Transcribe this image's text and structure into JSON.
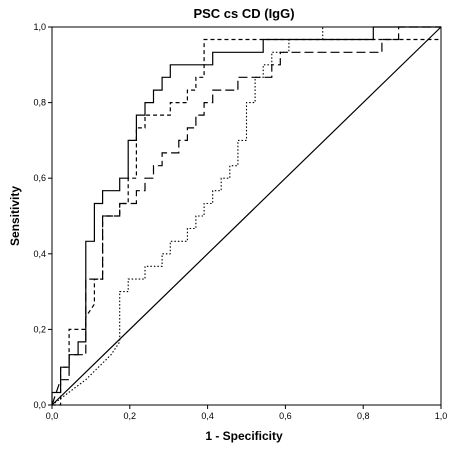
{
  "chart_data": {
    "type": "line",
    "title": "PSC cs CD (IgG)",
    "xlabel": "1 - Specificity",
    "ylabel": "Sensitivity",
    "xlim": [
      0,
      1
    ],
    "ylim": [
      0,
      1
    ],
    "x_ticks": [
      "0,0",
      "0,2",
      "0,4",
      "0,6",
      "0,8",
      "1,0"
    ],
    "y_ticks": [
      "0,0",
      "0,2",
      "0,4",
      "0,6",
      "0,8",
      "1,0"
    ],
    "grid": false,
    "legend": "none",
    "series": [
      {
        "style": "solid",
        "color": "#000000",
        "points": [
          [
            0,
            0
          ],
          [
            0,
            0.033
          ],
          [
            0.022,
            0.033
          ],
          [
            0.022,
            0.1
          ],
          [
            0.044,
            0.1
          ],
          [
            0.044,
            0.133
          ],
          [
            0.067,
            0.133
          ],
          [
            0.067,
            0.167
          ],
          [
            0.087,
            0.167
          ],
          [
            0.087,
            0.333
          ],
          [
            0.087,
            0.433
          ],
          [
            0.109,
            0.433
          ],
          [
            0.109,
            0.533
          ],
          [
            0.13,
            0.533
          ],
          [
            0.13,
            0.567
          ],
          [
            0.174,
            0.567
          ],
          [
            0.174,
            0.6
          ],
          [
            0.196,
            0.6
          ],
          [
            0.196,
            0.7
          ],
          [
            0.217,
            0.7
          ],
          [
            0.217,
            0.767
          ],
          [
            0.239,
            0.767
          ],
          [
            0.239,
            0.8
          ],
          [
            0.261,
            0.8
          ],
          [
            0.261,
            0.833
          ],
          [
            0.283,
            0.833
          ],
          [
            0.283,
            0.867
          ],
          [
            0.304,
            0.867
          ],
          [
            0.304,
            0.9
          ],
          [
            0.413,
            0.9
          ],
          [
            0.413,
            0.933
          ],
          [
            0.543,
            0.933
          ],
          [
            0.543,
            0.967
          ],
          [
            0.826,
            0.967
          ],
          [
            0.826,
            1.0
          ],
          [
            1.0,
            1.0
          ]
        ]
      },
      {
        "style": "short-dash",
        "color": "#000000",
        "points": [
          [
            0,
            0
          ],
          [
            0.022,
            0
          ],
          [
            0.022,
            0.1
          ],
          [
            0.044,
            0.1
          ],
          [
            0.044,
            0.2
          ],
          [
            0.087,
            0.2
          ],
          [
            0.087,
            0.233
          ],
          [
            0.109,
            0.267
          ],
          [
            0.109,
            0.333
          ],
          [
            0.13,
            0.333
          ],
          [
            0.13,
            0.5
          ],
          [
            0.174,
            0.5
          ],
          [
            0.174,
            0.533
          ],
          [
            0.196,
            0.533
          ],
          [
            0.196,
            0.6
          ],
          [
            0.217,
            0.6
          ],
          [
            0.217,
            0.733
          ],
          [
            0.239,
            0.733
          ],
          [
            0.239,
            0.767
          ],
          [
            0.261,
            0.767
          ],
          [
            0.261,
            0.767
          ],
          [
            0.304,
            0.767
          ],
          [
            0.304,
            0.8
          ],
          [
            0.348,
            0.8
          ],
          [
            0.348,
            0.833
          ],
          [
            0.37,
            0.833
          ],
          [
            0.37,
            0.867
          ],
          [
            0.391,
            0.867
          ],
          [
            0.391,
            0.967
          ],
          [
            1.0,
            0.967
          ]
        ]
      },
      {
        "style": "long-dash",
        "color": "#000000",
        "points": [
          [
            0,
            0
          ],
          [
            0.022,
            0.067
          ],
          [
            0.044,
            0.067
          ],
          [
            0.044,
            0.133
          ],
          [
            0.087,
            0.133
          ],
          [
            0.087,
            0.333
          ],
          [
            0.13,
            0.333
          ],
          [
            0.13,
            0.5
          ],
          [
            0.174,
            0.5
          ],
          [
            0.174,
            0.533
          ],
          [
            0.217,
            0.533
          ],
          [
            0.217,
            0.567
          ],
          [
            0.239,
            0.567
          ],
          [
            0.239,
            0.6
          ],
          [
            0.261,
            0.6
          ],
          [
            0.261,
            0.633
          ],
          [
            0.283,
            0.633
          ],
          [
            0.283,
            0.667
          ],
          [
            0.326,
            0.667
          ],
          [
            0.326,
            0.7
          ],
          [
            0.348,
            0.7
          ],
          [
            0.348,
            0.733
          ],
          [
            0.37,
            0.733
          ],
          [
            0.37,
            0.767
          ],
          [
            0.391,
            0.767
          ],
          [
            0.391,
            0.8
          ],
          [
            0.413,
            0.8
          ],
          [
            0.413,
            0.833
          ],
          [
            0.478,
            0.833
          ],
          [
            0.478,
            0.867
          ],
          [
            0.565,
            0.867
          ],
          [
            0.565,
            0.9
          ],
          [
            0.587,
            0.9
          ],
          [
            0.587,
            0.933
          ],
          [
            0.848,
            0.933
          ],
          [
            0.848,
            0.967
          ],
          [
            0.891,
            0.967
          ],
          [
            0.891,
            1.0
          ],
          [
            1.0,
            1.0
          ]
        ]
      },
      {
        "style": "dotted",
        "color": "#000000",
        "points": [
          [
            0,
            0
          ],
          [
            0.087,
            0.067
          ],
          [
            0.152,
            0.133
          ],
          [
            0.174,
            0.167
          ],
          [
            0.174,
            0.3
          ],
          [
            0.196,
            0.3
          ],
          [
            0.196,
            0.333
          ],
          [
            0.239,
            0.333
          ],
          [
            0.239,
            0.367
          ],
          [
            0.283,
            0.367
          ],
          [
            0.283,
            0.4
          ],
          [
            0.304,
            0.4
          ],
          [
            0.304,
            0.433
          ],
          [
            0.348,
            0.433
          ],
          [
            0.348,
            0.467
          ],
          [
            0.37,
            0.467
          ],
          [
            0.37,
            0.5
          ],
          [
            0.391,
            0.5
          ],
          [
            0.391,
            0.533
          ],
          [
            0.413,
            0.533
          ],
          [
            0.413,
            0.567
          ],
          [
            0.435,
            0.567
          ],
          [
            0.435,
            0.6
          ],
          [
            0.457,
            0.6
          ],
          [
            0.457,
            0.633
          ],
          [
            0.478,
            0.633
          ],
          [
            0.478,
            0.7
          ],
          [
            0.5,
            0.7
          ],
          [
            0.5,
            0.8
          ],
          [
            0.522,
            0.8
          ],
          [
            0.522,
            0.867
          ],
          [
            0.543,
            0.867
          ],
          [
            0.543,
            0.9
          ],
          [
            0.565,
            0.9
          ],
          [
            0.565,
            0.933
          ],
          [
            0.609,
            0.933
          ],
          [
            0.609,
            0.967
          ],
          [
            0.696,
            0.967
          ],
          [
            0.696,
            1.0
          ],
          [
            1.0,
            1.0
          ]
        ]
      },
      {
        "style": "reference",
        "color": "#000000",
        "points": [
          [
            0,
            0
          ],
          [
            1,
            1
          ]
        ]
      }
    ]
  }
}
